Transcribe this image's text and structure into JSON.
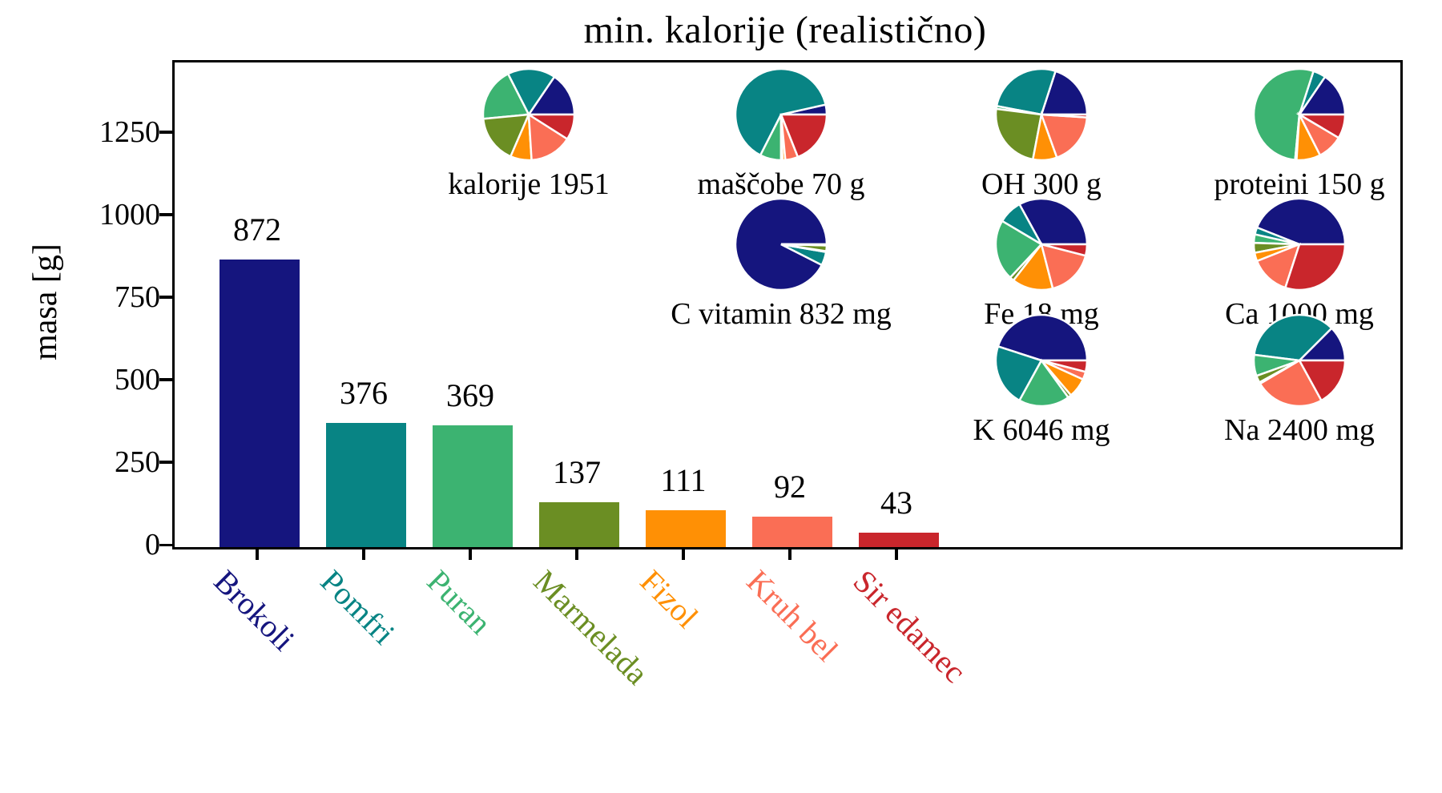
{
  "title": "min. kalorije (realistično)",
  "ylabel": "masa [g]",
  "chart_data": {
    "type": "bar",
    "title": "min. kalorije (realistično)",
    "ylabel": "masa [g]",
    "xlabel": "",
    "categories": [
      "Brokoli",
      "Pomfri",
      "Puran",
      "Marmelada",
      "Fizol",
      "Kruh bel",
      "Sir edamec"
    ],
    "values": [
      872,
      376,
      369,
      137,
      111,
      92,
      43
    ],
    "bar_value_labels": [
      "872",
      "376",
      "369",
      "137",
      "111",
      "92",
      "43"
    ],
    "colors": [
      "#15157E",
      "#088484",
      "#3CB371",
      "#6B8E23",
      "#FF9005",
      "#FA6E55",
      "#C9262C"
    ],
    "yticks": [
      0,
      250,
      500,
      750,
      1000,
      1250
    ],
    "ylim": [
      0,
      1468
    ],
    "grid": false,
    "legend": "none",
    "inset_pies_note": "each pie splits the nutrient total among the seven foods, slice colors match bar colors, percentages estimated from wedge angles",
    "pies": [
      {
        "label": "kalorije 1951",
        "col": 0,
        "row": 0,
        "fractions": [
          15.5,
          17.0,
          19.0,
          17.0,
          7.5,
          15.0,
          9.0
        ]
      },
      {
        "label": "maščobe 70 g",
        "col": 1,
        "row": 0,
        "fractions": [
          3.5,
          64.0,
          7.5,
          0.5,
          1.0,
          4.5,
          19.0
        ]
      },
      {
        "label": "OH 300 g",
        "col": 2,
        "row": 0,
        "fractions": [
          20.0,
          27.0,
          1.0,
          24.0,
          8.5,
          18.5,
          1.0
        ]
      },
      {
        "label": "proteini 150 g",
        "col": 3,
        "row": 0,
        "fractions": [
          15.5,
          4.5,
          53.5,
          0.5,
          8.5,
          9.0,
          8.5
        ]
      },
      {
        "label": "C vitamin 832 mg",
        "col": 1,
        "row": 1,
        "fractions": [
          92.5,
          4.8,
          0.3,
          2.0,
          0.2,
          0.1,
          0.1
        ]
      },
      {
        "label": "Fe 18 mg",
        "col": 2,
        "row": 1,
        "fractions": [
          33.0,
          8.5,
          21.5,
          1.5,
          14.5,
          17.0,
          4.0
        ]
      },
      {
        "label": "Ca 1000 mg",
        "col": 3,
        "row": 1,
        "fractions": [
          44.0,
          2.5,
          3.0,
          3.5,
          3.0,
          14.0,
          30.0
        ]
      },
      {
        "label": "K 6046 mg",
        "col": 2,
        "row": 2,
        "fractions": [
          45.0,
          22.0,
          18.0,
          1.2,
          7.0,
          2.8,
          4.0
        ]
      },
      {
        "label": "Na 2400 mg",
        "col": 3,
        "row": 2,
        "fractions": [
          12.5,
          35.5,
          7.5,
          2.5,
          0.5,
          24.5,
          17.0
        ]
      }
    ]
  }
}
